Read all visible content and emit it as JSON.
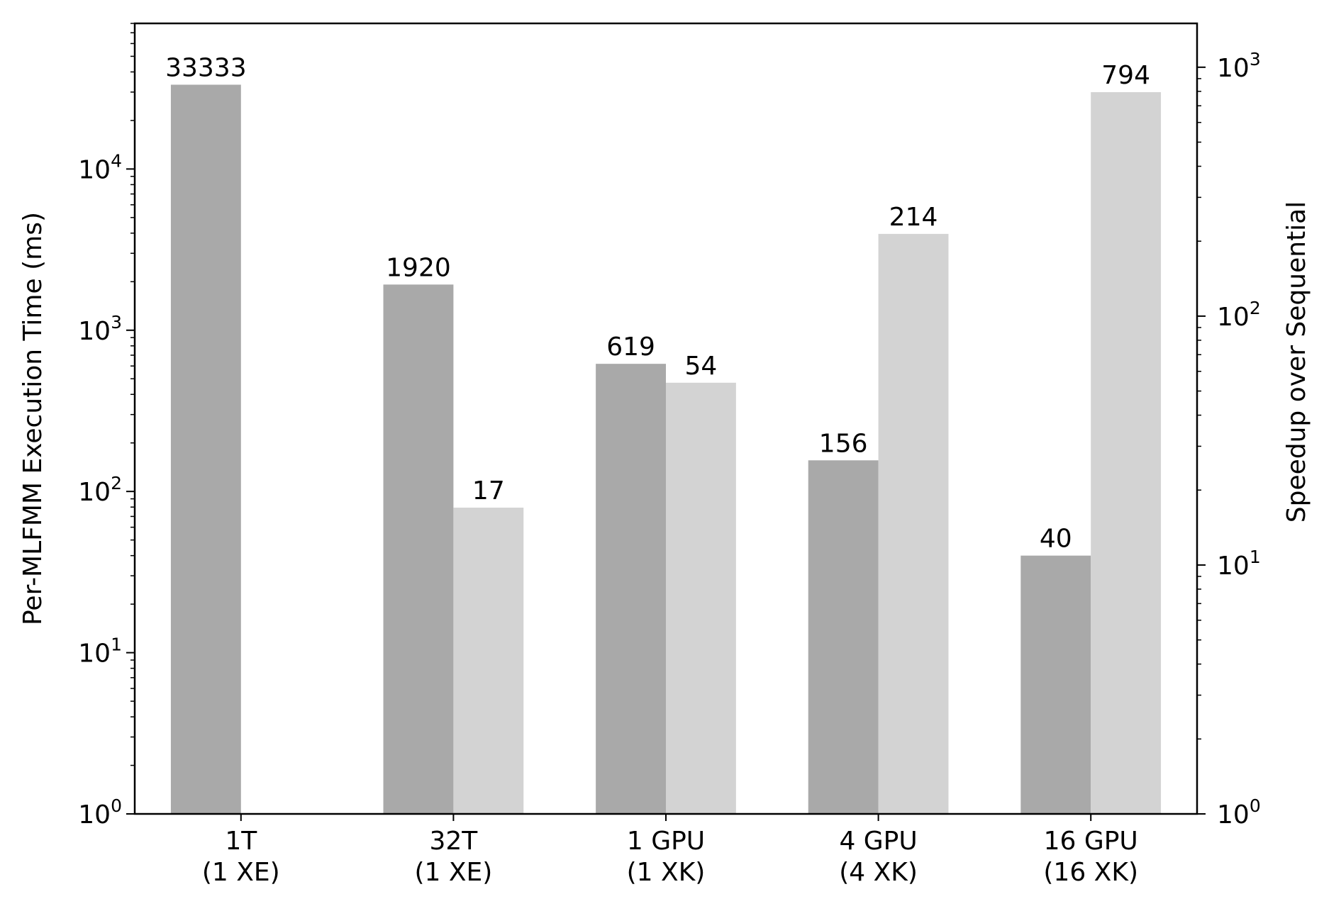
{
  "chart_data": {
    "type": "bar",
    "categories": [
      [
        "1T",
        "(1 XE)"
      ],
      [
        "32T",
        "(1 XE)"
      ],
      [
        "1 GPU",
        "(1 XK)"
      ],
      [
        "4 GPU",
        "(4 XK)"
      ],
      [
        "16 GPU",
        "(16 XK)"
      ]
    ],
    "series": [
      {
        "axis": "left",
        "color": "#a9a9a9",
        "values": [
          33333,
          1920,
          619,
          156,
          40
        ],
        "labels": [
          "33333",
          "1920",
          "619",
          "156",
          "40"
        ]
      },
      {
        "axis": "right",
        "color": "#d3d3d3",
        "values": [
          null,
          17,
          54,
          214,
          794
        ],
        "labels": [
          "",
          "17",
          "54",
          "214",
          "794"
        ]
      }
    ],
    "ylabel_left": "Per-MLFMM Execution Time (ms)",
    "ylabel_right": "Speedup over Sequential",
    "yscale_left": "log",
    "yscale_right": "log",
    "ylim_left": [
      1,
      80000
    ],
    "ylim_right": [
      1,
      1500
    ],
    "yticks_left": [
      {
        "value": 1,
        "base": "10",
        "exp": "0"
      },
      {
        "value": 10,
        "base": "10",
        "exp": "1"
      },
      {
        "value": 100,
        "base": "10",
        "exp": "2"
      },
      {
        "value": 1000,
        "base": "10",
        "exp": "3"
      },
      {
        "value": 10000,
        "base": "10",
        "exp": "4"
      }
    ],
    "yticks_right": [
      {
        "value": 1,
        "label": "10",
        "exp": "0"
      },
      {
        "value": 10,
        "label": "10",
        "exp": "1"
      },
      {
        "value": 100,
        "label": "10",
        "exp": "2"
      },
      {
        "value": 1000,
        "label": "10",
        "exp": "3"
      }
    ],
    "grid": false,
    "legend": "none"
  }
}
